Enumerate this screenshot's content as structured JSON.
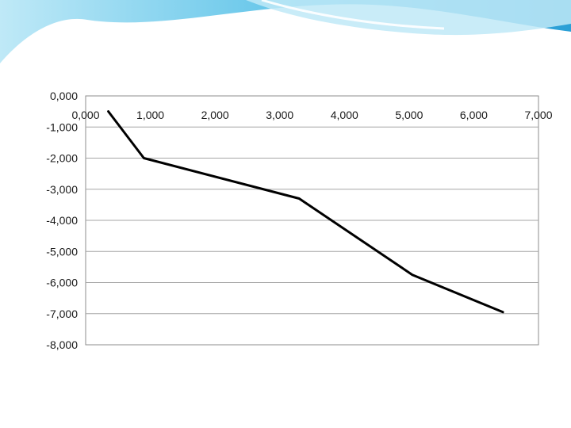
{
  "slide": {
    "theme_colors": {
      "wave_light": "#bfe9f7",
      "wave_mid": "#5bc2e8",
      "wave_dark": "#2a9fd6"
    }
  },
  "chart_data": {
    "type": "line",
    "title": "",
    "xlabel": "",
    "ylabel": "",
    "xlim": [
      0,
      7
    ],
    "ylim": [
      -8,
      0
    ],
    "x_ticks": [
      "0,000",
      "1,000",
      "2,000",
      "3,000",
      "4,000",
      "5,000",
      "6,000",
      "7,000"
    ],
    "y_ticks": [
      "0,000",
      "-1,000",
      "-2,000",
      "-3,000",
      "-4,000",
      "-5,000",
      "-6,000",
      "-7,000",
      "-8,000"
    ],
    "x_tick_values": [
      0,
      1,
      2,
      3,
      4,
      5,
      6,
      7
    ],
    "y_tick_values": [
      0,
      -1,
      -2,
      -3,
      -4,
      -5,
      -6,
      -7,
      -8
    ],
    "x_axis_position": "top",
    "grid": "horizontal",
    "legend": "none",
    "line_color": "#000000",
    "series": [
      {
        "x": [
          0.35,
          0.9,
          3.3,
          5.05,
          6.45
        ],
        "y": [
          -0.5,
          -2.0,
          -3.3,
          -5.75,
          -6.95
        ]
      }
    ]
  }
}
